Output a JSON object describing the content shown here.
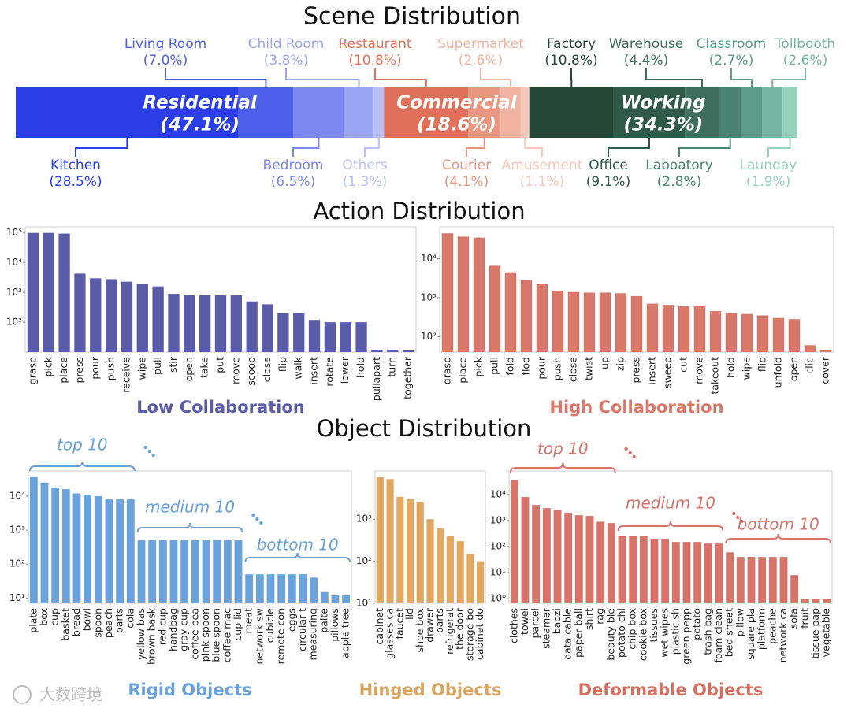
{
  "watermark": "大数跨境",
  "chart_data": [
    {
      "type": "stacked-bar",
      "title": "Scene Distribution",
      "xlim": [
        0,
        100
      ],
      "groups": [
        {
          "name": "Residential",
          "value": 47.1,
          "value_label": "(47.1%)",
          "segments": [
            {
              "name": "Kitchen",
              "value": 28.5,
              "value_label": "(28.5%)",
              "color": "#2b3ee6"
            },
            {
              "name": "Living Room",
              "value": 7.0,
              "value_label": "(7.0%)",
              "color": "#4d5ee9"
            },
            {
              "name": "Bedroom",
              "value": 6.5,
              "value_label": "(6.5%)",
              "color": "#7c87ef"
            },
            {
              "name": "Child Room",
              "value": 3.8,
              "value_label": "(3.8%)",
              "color": "#9ca5f3"
            },
            {
              "name": "Others",
              "value": 1.3,
              "value_label": "(1.3%)",
              "color": "#b9c0f7"
            }
          ]
        },
        {
          "name": "Commercial",
          "value": 18.6,
          "value_label": "(18.6%)",
          "segments": [
            {
              "name": "Restaurant",
              "value": 10.8,
              "value_label": "(10.8%)",
              "color": "#e0705a"
            },
            {
              "name": "Courier",
              "value": 4.1,
              "value_label": "(4.1%)",
              "color": "#ea9782"
            },
            {
              "name": "Supermarket",
              "value": 2.6,
              "value_label": "(2.6%)",
              "color": "#f1b3a1"
            },
            {
              "name": "Amusement",
              "value": 1.1,
              "value_label": "(1.1%)",
              "color": "#f5c8b9"
            }
          ]
        },
        {
          "name": "Working",
          "value": 34.3,
          "value_label": "(34.3%)",
          "segments": [
            {
              "name": "Factory",
              "value": 10.8,
              "value_label": "(10.8%)",
              "color": "#264637"
            },
            {
              "name": "Office",
              "value": 9.1,
              "value_label": "(9.1%)",
              "color": "#2f5a49"
            },
            {
              "name": "Warehouse",
              "value": 4.4,
              "value_label": "(4.4%)",
              "color": "#3d6e5e"
            },
            {
              "name": "Laboatory",
              "value": 2.8,
              "value_label": "(2.8%)",
              "color": "#4b8372"
            },
            {
              "name": "Classroom",
              "value": 2.7,
              "value_label": "(2.7%)",
              "color": "#5c9c89"
            },
            {
              "name": "Tollbooth",
              "value": 2.6,
              "value_label": "(2.6%)",
              "color": "#76b5a1"
            },
            {
              "name": "Launday",
              "value": 1.9,
              "value_label": "(1.9%)",
              "color": "#97d1bc"
            }
          ]
        }
      ]
    },
    {
      "type": "bar",
      "section": "Action Distribution",
      "title": "Low Collaboration",
      "color": "#5b5ca8",
      "title_color": "#5b5ca8",
      "log_y": true,
      "ylim": [
        10,
        160000
      ],
      "yticks": [
        {
          "value": 100,
          "label": "10²"
        },
        {
          "value": 1000,
          "label": "10³"
        },
        {
          "value": 10000,
          "label": "10⁴"
        },
        {
          "value": 100000,
          "label": "10⁵"
        }
      ],
      "categories": [
        "grasp",
        "pick",
        "place",
        "press",
        "pour",
        "push",
        "receive",
        "wipe",
        "pull",
        "stir",
        "open",
        "take",
        "put",
        "move",
        "scoop",
        "close",
        "flip",
        "walk",
        "insert",
        "rotate",
        "lower",
        "hold",
        "pullapart",
        "turn",
        "together"
      ],
      "values": [
        100000,
        100000,
        95000,
        4300,
        3000,
        2800,
        2300,
        2000,
        1600,
        900,
        800,
        800,
        800,
        800,
        500,
        400,
        200,
        200,
        120,
        100,
        100,
        100,
        12,
        12,
        12
      ]
    },
    {
      "type": "bar",
      "title": "High Collaboration",
      "color": "#d7786b",
      "title_color": "#d9786a",
      "log_y": true,
      "ylim": [
        40,
        66000
      ],
      "yticks": [
        {
          "value": 100,
          "label": "10²"
        },
        {
          "value": 1000,
          "label": "10³"
        },
        {
          "value": 10000,
          "label": "10⁴"
        }
      ],
      "categories": [
        "grasp",
        "place",
        "pick",
        "pull",
        "fold",
        "flod",
        "pour",
        "push",
        "close",
        "twist",
        "up",
        "zip",
        "press",
        "insert",
        "sweep",
        "cut",
        "move",
        "takeout",
        "hold",
        "wipe",
        "flip",
        "unfold",
        "open",
        "clip",
        "cover"
      ],
      "values": [
        45000,
        37000,
        35000,
        6600,
        4500,
        2800,
        2200,
        1500,
        1400,
        1350,
        1350,
        1300,
        1100,
        700,
        650,
        600,
        600,
        450,
        400,
        380,
        350,
        300,
        280,
        60,
        45
      ]
    },
    {
      "type": "bar",
      "section": "Object Distribution",
      "title": "Rigid Objects",
      "color": "#6aa2dc",
      "title_color": "#6aa2dc",
      "log_y": true,
      "annotations": [
        "top 10",
        "medium 10",
        "bottom 10"
      ],
      "ylim": [
        7,
        55000
      ],
      "yticks": [
        {
          "value": 10,
          "label": "10¹"
        },
        {
          "value": 100,
          "label": "10²"
        },
        {
          "value": 1000,
          "label": "10³"
        },
        {
          "value": 10000,
          "label": "10⁴"
        }
      ],
      "categories": [
        "plate",
        "box",
        "cup",
        "basket",
        "bread",
        "bowl",
        "spoon",
        "peach",
        "parts",
        "cola",
        "yellow bas",
        "brown bask",
        "red cup",
        "handbag",
        "gray cup",
        "coffee bea",
        "pink spoon",
        "blue spoon",
        "coffee mac",
        "cup lid",
        "meat",
        "network sw",
        "cubicle",
        "remote con",
        "eggs",
        "circular t",
        "measuring",
        "palte",
        "pillows",
        "apple tree"
      ],
      "values": [
        38000,
        25000,
        18000,
        16000,
        12000,
        11000,
        10000,
        8000,
        8000,
        8000,
        500,
        500,
        500,
        500,
        500,
        500,
        500,
        500,
        500,
        500,
        50,
        50,
        50,
        50,
        50,
        50,
        40,
        15,
        12,
        12
      ]
    },
    {
      "type": "bar",
      "title": "Hinged Objects",
      "color": "#e2a862",
      "title_color": "#d9a45e",
      "log_y": true,
      "ylim": [
        10,
        14000
      ],
      "yticks": [
        {
          "value": 10,
          "label": "10¹"
        },
        {
          "value": 100,
          "label": "10²"
        },
        {
          "value": 1000,
          "label": "10³"
        }
      ],
      "categories": [
        "cabinet",
        "glasses ca",
        "faucet",
        "lid",
        "shoe box",
        "drawer",
        "parts",
        "refrigerat",
        "the door",
        "storage bo",
        "cabinet do"
      ],
      "values": [
        10000,
        9000,
        3400,
        3000,
        2500,
        1000,
        600,
        400,
        300,
        150,
        100
      ]
    },
    {
      "type": "bar",
      "title": "Deformable Objects",
      "color": "#d8736a",
      "title_color": "#d4705f",
      "log_y": true,
      "annotations": [
        "top 10",
        "medium 10",
        "bottom 10"
      ],
      "ylim": [
        0.66,
        80000
      ],
      "yticks": [
        {
          "value": 1,
          "label": "10⁰"
        },
        {
          "value": 10,
          "label": "10¹"
        },
        {
          "value": 100,
          "label": "10²"
        },
        {
          "value": 1000,
          "label": "10³"
        },
        {
          "value": 10000,
          "label": "10⁴"
        }
      ],
      "categories": [
        "clothes",
        "towel",
        "parcel",
        "steamer",
        "baozi",
        "data cable",
        "paper ball",
        "shirt",
        "rag",
        "beauty ble",
        "potato chi",
        "chip box",
        "cookie box",
        "tissues",
        "wet wipes",
        "plastic sh",
        "green pepp",
        "potato",
        "trash bag",
        "foam clean",
        "bed sheet",
        "pillow",
        "square pla",
        "platform",
        "peache",
        "network ca",
        "sofa",
        "fruit",
        "tissue pap",
        "vegetable"
      ],
      "values": [
        35000,
        8000,
        4000,
        3000,
        2500,
        2000,
        1600,
        1500,
        900,
        800,
        250,
        250,
        250,
        200,
        200,
        150,
        150,
        150,
        130,
        130,
        60,
        40,
        40,
        40,
        40,
        40,
        8,
        1,
        1,
        1
      ]
    }
  ]
}
